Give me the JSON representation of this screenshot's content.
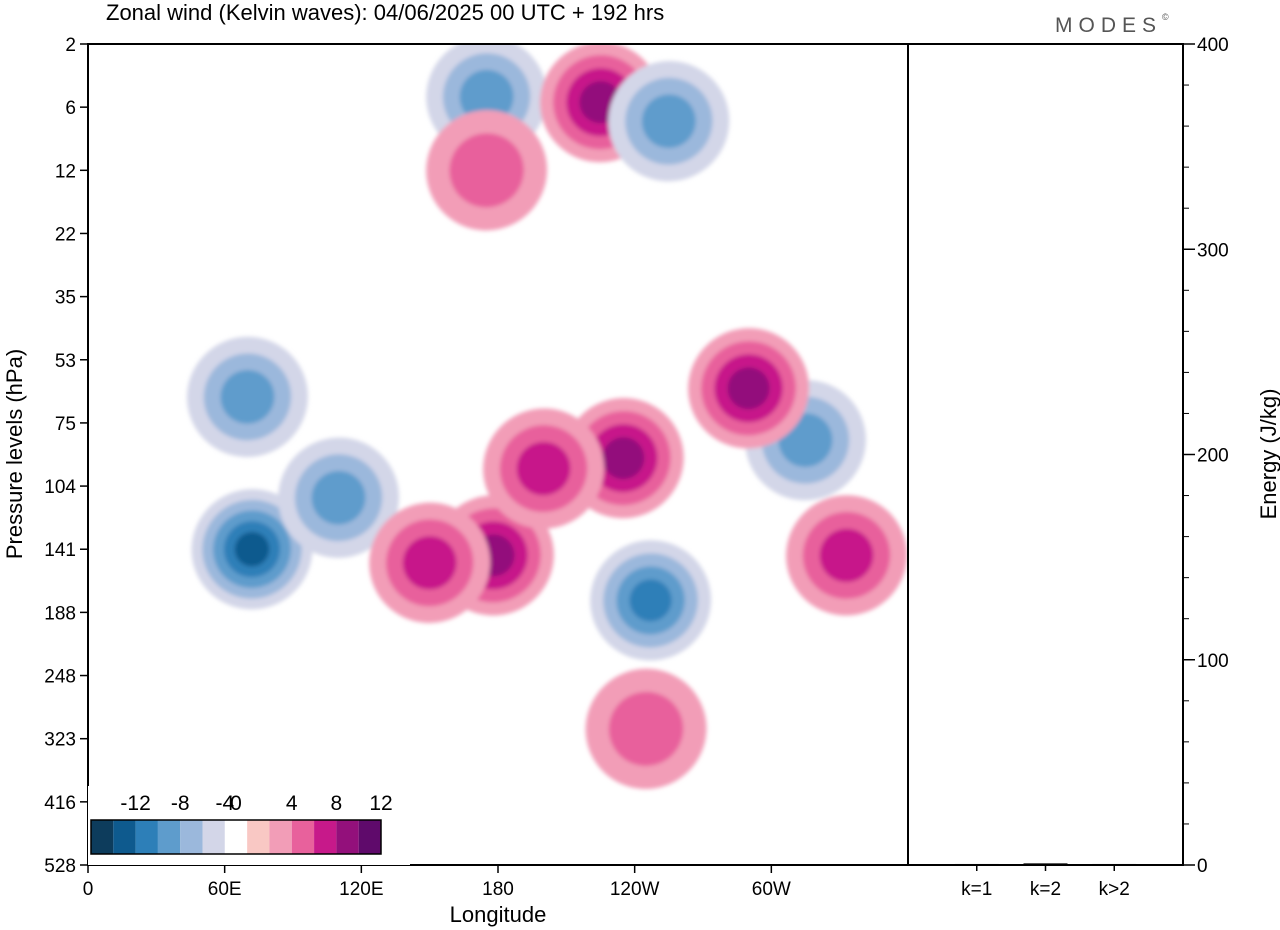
{
  "chart_data": {
    "type": "heatmap",
    "title": "Zonal wind (Kelvin waves):  04/06/2025  00 UTC  + 192 hrs",
    "brand": "MODES",
    "brand_mark": "©",
    "xlabel": "Longitude",
    "ylabel": "Pressure levels (hPa)",
    "x_ticks": [
      "0",
      "60E",
      "120E",
      "180",
      "120W",
      "60W"
    ],
    "x_tick_degrees": [
      0,
      60,
      120,
      180,
      240,
      300
    ],
    "xlim": [
      0,
      360
    ],
    "y_ticks": [
      "2",
      "6",
      "12",
      "22",
      "35",
      "53",
      "75",
      "104",
      "141",
      "188",
      "248",
      "323",
      "416",
      "528"
    ],
    "y_scale": "log",
    "y_reversed": true,
    "colorbar": {
      "tick_labels": [
        "-12",
        "-8",
        "-4",
        "0",
        "4",
        "8",
        "12"
      ],
      "levels": [
        -14,
        -12,
        -10,
        -8,
        -6,
        -4,
        -2,
        2,
        4,
        6,
        8,
        10,
        12,
        14
      ],
      "colors": [
        "#0d3c5c",
        "#0e5a8e",
        "#2d7fb8",
        "#5e9ccc",
        "#9bb8dc",
        "#d3d6e8",
        "#ffffff",
        "#f9c8c4",
        "#f29db7",
        "#e8619c",
        "#c7198a",
        "#93107b",
        "#5f0a6b"
      ]
    },
    "wave_features": [
      {
        "sign": "negative",
        "level": 10,
        "lon": 72,
        "p": 141
      },
      {
        "sign": "negative",
        "level": 6,
        "lon": 110,
        "p": 110
      },
      {
        "sign": "negative",
        "level": 8,
        "lon": 247,
        "p": 178
      },
      {
        "sign": "negative",
        "level": 6,
        "lon": 315,
        "p": 82
      },
      {
        "sign": "negative",
        "level": 6,
        "lon": 70,
        "p": 65
      },
      {
        "sign": "positive",
        "level": 8,
        "lon": 178,
        "p": 145
      },
      {
        "sign": "positive",
        "level": 6,
        "lon": 150,
        "p": 150
      },
      {
        "sign": "positive",
        "level": 8,
        "lon": 235,
        "p": 90
      },
      {
        "sign": "positive",
        "level": 8,
        "lon": 290,
        "p": 62
      },
      {
        "sign": "positive",
        "level": 6,
        "lon": 333,
        "p": 145
      },
      {
        "sign": "positive",
        "level": 6,
        "lon": 200,
        "p": 95
      },
      {
        "sign": "positive",
        "level": 4,
        "lon": 245,
        "p": 310
      },
      {
        "sign": "negative",
        "level": 6,
        "lon": 175,
        "p": 5
      },
      {
        "sign": "positive",
        "level": 8,
        "lon": 225,
        "p": 5.5
      },
      {
        "sign": "negative",
        "level": 6,
        "lon": 255,
        "p": 7
      },
      {
        "sign": "positive",
        "level": 4,
        "lon": 175,
        "p": 12
      }
    ],
    "energy_panel": {
      "ylabel": "Energy (J/kg)",
      "y_ticks": [
        "0",
        "100",
        "200",
        "300",
        "400"
      ],
      "ylim": [
        0,
        400
      ],
      "categories": [
        "k=1",
        "k=2",
        "k>2"
      ],
      "values": [
        0.5,
        0.8,
        0.5
      ]
    }
  }
}
